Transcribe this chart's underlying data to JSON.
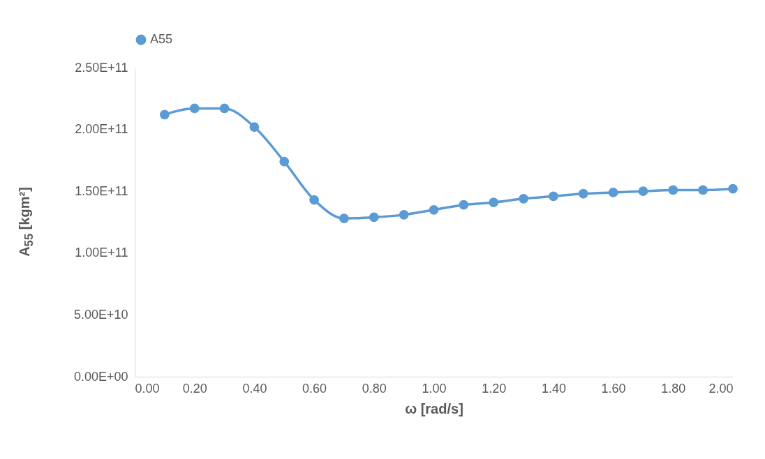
{
  "chart_data": {
    "type": "line",
    "xlabel": "ω [rad/s]",
    "ylabel": "A$_{55}$ [kgm²]",
    "x": [
      0.1,
      0.2,
      0.3,
      0.4,
      0.5,
      0.6,
      0.7,
      0.8,
      0.9,
      1.0,
      1.1,
      1.2,
      1.3,
      1.4,
      1.5,
      1.6,
      1.7,
      1.8,
      1.9,
      2.0
    ],
    "series": [
      {
        "name": "A55",
        "color": "#5b9bd5",
        "values": [
          212000000000.0,
          217000000000.0,
          217000000000.0,
          202000000000.0,
          174000000000.0,
          143000000000.0,
          128000000000.0,
          129000000000.0,
          131000000000.0,
          135000000000.0,
          139000000000.0,
          141000000000.0,
          144000000000.0,
          146000000000.0,
          148000000000.0,
          149000000000.0,
          150000000000.0,
          151000000000.0,
          151000000000.0,
          152000000000.0
        ]
      }
    ],
    "xlim": [
      0,
      2
    ],
    "xticks": [
      {
        "value": 0,
        "label": "0.00"
      },
      {
        "value": 0.2,
        "label": "0.20"
      },
      {
        "value": 0.4,
        "label": "0.40"
      },
      {
        "value": 0.6,
        "label": "0.60"
      },
      {
        "value": 0.8,
        "label": "0.80"
      },
      {
        "value": 1,
        "label": "1.00"
      },
      {
        "value": 1.2,
        "label": "1.20"
      },
      {
        "value": 1.4,
        "label": "1.40"
      },
      {
        "value": 1.6,
        "label": "1.60"
      },
      {
        "value": 1.8,
        "label": "1.80"
      },
      {
        "value": 2,
        "label": "2.00"
      }
    ],
    "ylim": [
      0,
      250000000000.0
    ],
    "yticks": [
      {
        "value": 0,
        "label": "0.00E+00"
      },
      {
        "value": 50000000000.0,
        "label": "5.00E+10"
      },
      {
        "value": 100000000000.0,
        "label": "1.00E+11"
      },
      {
        "value": 150000000000.0,
        "label": "1.50E+11"
      },
      {
        "value": 200000000000.0,
        "label": "2.00E+11"
      },
      {
        "value": 250000000000.0,
        "label": "2.50E+11"
      }
    ],
    "grid": false,
    "legend": "top",
    "marker": "circle",
    "line_style": "solid"
  }
}
